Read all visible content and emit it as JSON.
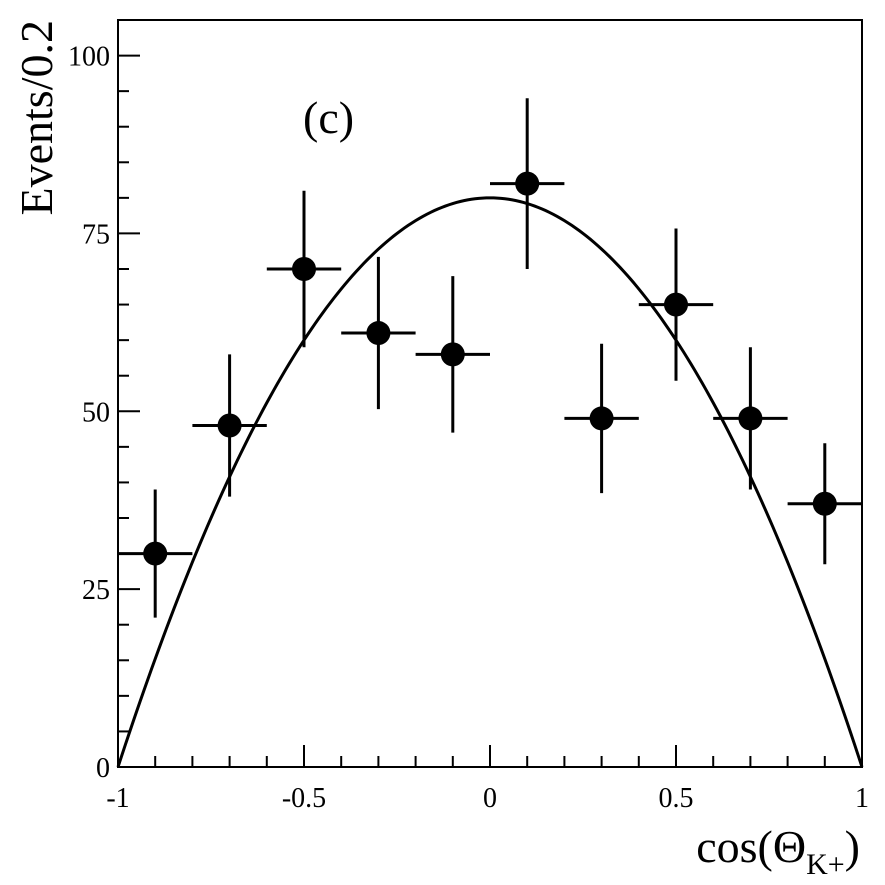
{
  "chart_data": {
    "type": "scatter",
    "panel_label": "(c)",
    "xlabel_prefix": "cos(",
    "xlabel_symbol": "Θ",
    "xlabel_subscript": "K+",
    "xlabel_suffix": ")",
    "ylabel": "Events/0.2",
    "xlim": [
      -1,
      1
    ],
    "ylim": [
      0,
      105
    ],
    "x_ticks": [
      {
        "value": -1,
        "label": "-1"
      },
      {
        "value": -0.5,
        "label": "-0.5"
      },
      {
        "value": 0,
        "label": "0"
      },
      {
        "value": 0.5,
        "label": "0.5"
      },
      {
        "value": 1,
        "label": "1"
      }
    ],
    "y_ticks": [
      {
        "value": 0,
        "label": "0"
      },
      {
        "value": 25,
        "label": "25"
      },
      {
        "value": 50,
        "label": "50"
      },
      {
        "value": 75,
        "label": "75"
      },
      {
        "value": 100,
        "label": "100"
      }
    ],
    "grid": false,
    "legend": "none",
    "series": [
      {
        "kind": "points-with-errors",
        "bin_half_width": 0.1,
        "points": [
          {
            "x": -0.9,
            "y": 30,
            "yerr": 9
          },
          {
            "x": -0.7,
            "y": 48,
            "yerr": 10
          },
          {
            "x": -0.5,
            "y": 70,
            "yerr": 11
          },
          {
            "x": -0.3,
            "y": 61,
            "yerr": 10.7
          },
          {
            "x": -0.1,
            "y": 58,
            "yerr": 11
          },
          {
            "x": 0.1,
            "y": 82,
            "yerr": 12
          },
          {
            "x": 0.3,
            "y": 49,
            "yerr": 10.5
          },
          {
            "x": 0.5,
            "y": 65,
            "yerr": 10.7
          },
          {
            "x": 0.7,
            "y": 49,
            "yerr": 10
          },
          {
            "x": 0.9,
            "y": 37,
            "yerr": 8.5
          }
        ]
      },
      {
        "kind": "fit-curve",
        "function": "A*(1-x^2)",
        "A": 80
      }
    ],
    "colors": {
      "ink": "#000000",
      "background": "#ffffff"
    }
  }
}
